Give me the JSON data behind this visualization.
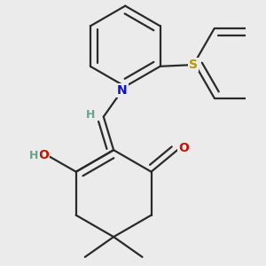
{
  "bg_color": "#ebebeb",
  "bond_color": "#2a2a2a",
  "bond_lw": 1.6,
  "inner_dbo": 0.045,
  "atom_colors": {
    "N": "#1010cc",
    "O": "#cc1100",
    "H_teal": "#6ca090",
    "S": "#b8960a",
    "C": "#2a2a2a"
  },
  "font_size": 10,
  "fig_size": [
    3.0,
    3.0
  ],
  "dpi": 100
}
